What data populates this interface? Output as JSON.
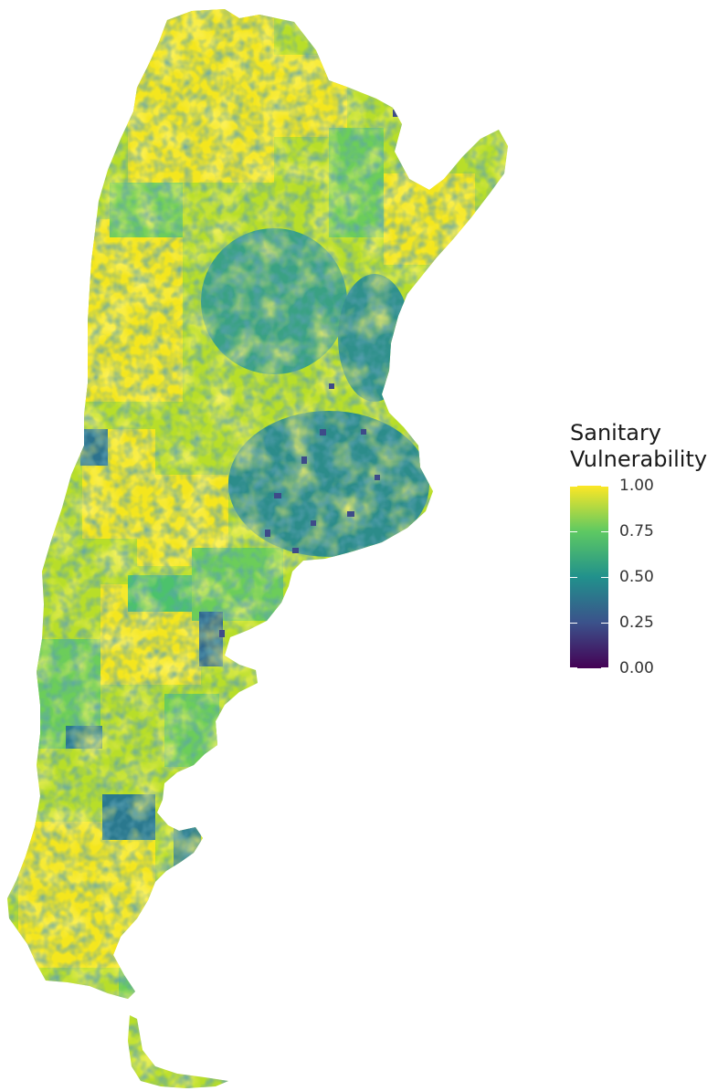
{
  "figure": {
    "legend_title_line1": "Sanitary",
    "legend_title_line2": "Vulnerability"
  },
  "legend": {
    "scale": "viridis",
    "range": [
      0.0,
      1.0
    ],
    "ticks": [
      {
        "value": 1.0,
        "label": "1.00"
      },
      {
        "value": 0.75,
        "label": "0.75"
      },
      {
        "value": 0.5,
        "label": "0.50"
      },
      {
        "value": 0.25,
        "label": "0.25"
      },
      {
        "value": 0.0,
        "label": "0.00"
      }
    ],
    "colors": [
      "#440154",
      "#3b528b",
      "#21918c",
      "#5ec962",
      "#fde725"
    ]
  },
  "map": {
    "region": "Argentina",
    "variable": "sanitary vulnerability by department",
    "background": "#ffffff"
  }
}
